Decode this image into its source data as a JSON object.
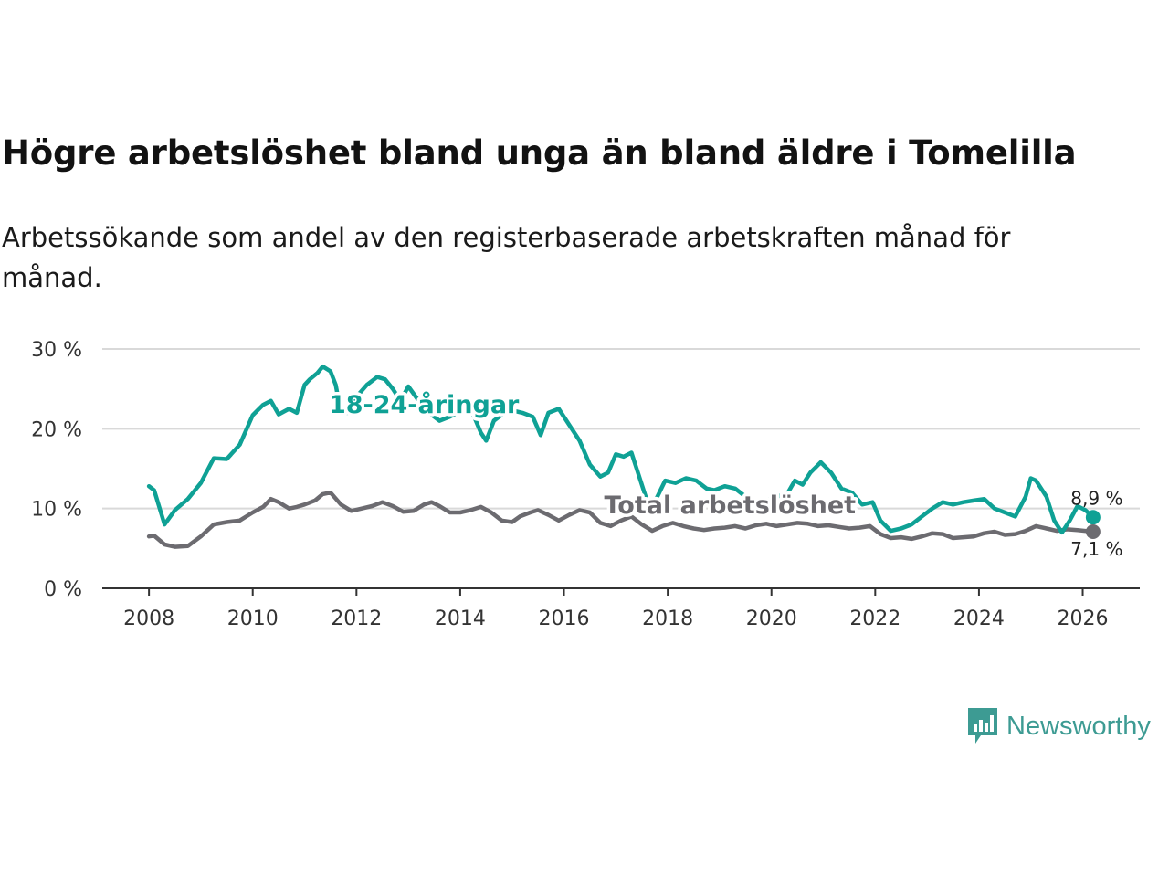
{
  "header": {
    "title": "Högre arbetslöshet bland unga än bland äldre i Tomelilla",
    "subtitle": "Arbetssökande som andel av den registerbaserade arbetskraften månad för månad."
  },
  "brand": {
    "name": "Newsworthy",
    "color": "#3d9b93"
  },
  "chart_data": {
    "type": "line",
    "title": "Högre arbetslöshet bland unga än bland äldre i Tomelilla",
    "xlabel": "",
    "ylabel": "",
    "xlim": [
      2007.1,
      2027.1
    ],
    "ylim": [
      0,
      30
    ],
    "y_ticks": [
      0,
      10,
      20,
      30
    ],
    "y_tick_labels": [
      "0 %",
      "10 %",
      "20 %",
      "30 %"
    ],
    "x_ticks": [
      2008,
      2010,
      2012,
      2014,
      2016,
      2018,
      2020,
      2022,
      2024,
      2026
    ],
    "x_tick_labels": [
      "2008",
      "2010",
      "2012",
      "2014",
      "2016",
      "2018",
      "2020",
      "2022",
      "2024",
      "2026"
    ],
    "grid": true,
    "series": [
      {
        "name": "18-24-åringar",
        "color": "#0fa195",
        "end_label": "8,9 %",
        "points": [
          [
            2008.0,
            12.8
          ],
          [
            2008.1,
            12.3
          ],
          [
            2008.3,
            8.0
          ],
          [
            2008.5,
            9.8
          ],
          [
            2008.75,
            11.2
          ],
          [
            2009.0,
            13.2
          ],
          [
            2009.25,
            16.3
          ],
          [
            2009.5,
            16.2
          ],
          [
            2009.75,
            18.0
          ],
          [
            2010.0,
            21.7
          ],
          [
            2010.2,
            23.0
          ],
          [
            2010.35,
            23.5
          ],
          [
            2010.5,
            21.8
          ],
          [
            2010.7,
            22.5
          ],
          [
            2010.85,
            22.0
          ],
          [
            2011.0,
            25.5
          ],
          [
            2011.1,
            26.2
          ],
          [
            2011.25,
            27.0
          ],
          [
            2011.35,
            27.8
          ],
          [
            2011.5,
            27.2
          ],
          [
            2011.6,
            25.5
          ],
          [
            2011.7,
            22.0
          ],
          [
            2011.85,
            22.0
          ],
          [
            2012.0,
            24.0
          ],
          [
            2012.2,
            25.5
          ],
          [
            2012.4,
            26.5
          ],
          [
            2012.55,
            26.2
          ],
          [
            2012.7,
            25.0
          ],
          [
            2012.85,
            23.5
          ],
          [
            2013.0,
            25.3
          ],
          [
            2013.2,
            23.5
          ],
          [
            2013.4,
            22.0
          ],
          [
            2013.6,
            21.0
          ],
          [
            2013.8,
            21.5
          ],
          [
            2014.0,
            22.2
          ],
          [
            2014.25,
            21.8
          ],
          [
            2014.4,
            19.5
          ],
          [
            2014.5,
            18.5
          ],
          [
            2014.65,
            21.0
          ],
          [
            2014.85,
            22.0
          ],
          [
            2015.0,
            22.3
          ],
          [
            2015.2,
            22.0
          ],
          [
            2015.4,
            21.5
          ],
          [
            2015.55,
            19.2
          ],
          [
            2015.7,
            22.0
          ],
          [
            2015.9,
            22.5
          ],
          [
            2016.1,
            20.5
          ],
          [
            2016.3,
            18.5
          ],
          [
            2016.5,
            15.5
          ],
          [
            2016.7,
            14.0
          ],
          [
            2016.85,
            14.5
          ],
          [
            2017.0,
            16.8
          ],
          [
            2017.15,
            16.5
          ],
          [
            2017.3,
            17.0
          ],
          [
            2017.45,
            14.0
          ],
          [
            2017.65,
            10.0
          ],
          [
            2017.8,
            11.5
          ],
          [
            2017.95,
            13.5
          ],
          [
            2018.15,
            13.2
          ],
          [
            2018.35,
            13.8
          ],
          [
            2018.55,
            13.5
          ],
          [
            2018.75,
            12.5
          ],
          [
            2018.9,
            12.3
          ],
          [
            2019.1,
            12.8
          ],
          [
            2019.3,
            12.5
          ],
          [
            2019.5,
            11.5
          ],
          [
            2019.7,
            10.5
          ],
          [
            2019.9,
            11.0
          ],
          [
            2020.1,
            11.5
          ],
          [
            2020.3,
            11.8
          ],
          [
            2020.45,
            13.5
          ],
          [
            2020.6,
            13.0
          ],
          [
            2020.75,
            14.5
          ],
          [
            2020.95,
            15.8
          ],
          [
            2021.15,
            14.5
          ],
          [
            2021.35,
            12.5
          ],
          [
            2021.55,
            12.0
          ],
          [
            2021.75,
            10.5
          ],
          [
            2021.95,
            10.8
          ],
          [
            2022.1,
            8.5
          ],
          [
            2022.3,
            7.2
          ],
          [
            2022.5,
            7.5
          ],
          [
            2022.7,
            8.0
          ],
          [
            2022.9,
            9.0
          ],
          [
            2023.1,
            10.0
          ],
          [
            2023.3,
            10.8
          ],
          [
            2023.5,
            10.5
          ],
          [
            2023.7,
            10.8
          ],
          [
            2023.9,
            11.0
          ],
          [
            2024.1,
            11.2
          ],
          [
            2024.3,
            10.0
          ],
          [
            2024.5,
            9.5
          ],
          [
            2024.7,
            9.0
          ],
          [
            2024.9,
            11.5
          ],
          [
            2025.0,
            13.8
          ],
          [
            2025.1,
            13.5
          ],
          [
            2025.3,
            11.5
          ],
          [
            2025.45,
            8.5
          ],
          [
            2025.6,
            7.0
          ],
          [
            2025.75,
            8.5
          ],
          [
            2025.9,
            10.3
          ],
          [
            2026.05,
            9.8
          ],
          [
            2026.2,
            8.9
          ]
        ]
      },
      {
        "name": "Total arbetslöshet",
        "color": "#6c6b70",
        "end_label": "7,1 %",
        "points": [
          [
            2008.0,
            6.5
          ],
          [
            2008.1,
            6.6
          ],
          [
            2008.3,
            5.5
          ],
          [
            2008.5,
            5.2
          ],
          [
            2008.75,
            5.3
          ],
          [
            2009.0,
            6.5
          ],
          [
            2009.25,
            8.0
          ],
          [
            2009.5,
            8.3
          ],
          [
            2009.75,
            8.5
          ],
          [
            2010.0,
            9.5
          ],
          [
            2010.2,
            10.2
          ],
          [
            2010.35,
            11.2
          ],
          [
            2010.5,
            10.8
          ],
          [
            2010.7,
            10.0
          ],
          [
            2010.85,
            10.2
          ],
          [
            2011.0,
            10.5
          ],
          [
            2011.2,
            11.0
          ],
          [
            2011.35,
            11.8
          ],
          [
            2011.5,
            12.0
          ],
          [
            2011.7,
            10.5
          ],
          [
            2011.9,
            9.7
          ],
          [
            2012.1,
            10.0
          ],
          [
            2012.3,
            10.3
          ],
          [
            2012.5,
            10.8
          ],
          [
            2012.7,
            10.3
          ],
          [
            2012.9,
            9.6
          ],
          [
            2013.1,
            9.7
          ],
          [
            2013.3,
            10.5
          ],
          [
            2013.45,
            10.8
          ],
          [
            2013.6,
            10.3
          ],
          [
            2013.8,
            9.5
          ],
          [
            2014.0,
            9.5
          ],
          [
            2014.2,
            9.8
          ],
          [
            2014.4,
            10.2
          ],
          [
            2014.6,
            9.5
          ],
          [
            2014.8,
            8.5
          ],
          [
            2015.0,
            8.3
          ],
          [
            2015.15,
            9.0
          ],
          [
            2015.35,
            9.5
          ],
          [
            2015.5,
            9.8
          ],
          [
            2015.7,
            9.2
          ],
          [
            2015.9,
            8.5
          ],
          [
            2016.1,
            9.2
          ],
          [
            2016.3,
            9.8
          ],
          [
            2016.5,
            9.5
          ],
          [
            2016.7,
            8.2
          ],
          [
            2016.9,
            7.8
          ],
          [
            2017.1,
            8.5
          ],
          [
            2017.3,
            9.0
          ],
          [
            2017.5,
            8.0
          ],
          [
            2017.7,
            7.2
          ],
          [
            2017.9,
            7.8
          ],
          [
            2018.1,
            8.2
          ],
          [
            2018.3,
            7.8
          ],
          [
            2018.5,
            7.5
          ],
          [
            2018.7,
            7.3
          ],
          [
            2018.9,
            7.5
          ],
          [
            2019.1,
            7.6
          ],
          [
            2019.3,
            7.8
          ],
          [
            2019.5,
            7.5
          ],
          [
            2019.7,
            7.9
          ],
          [
            2019.9,
            8.1
          ],
          [
            2020.1,
            7.8
          ],
          [
            2020.3,
            8.0
          ],
          [
            2020.5,
            8.2
          ],
          [
            2020.7,
            8.1
          ],
          [
            2020.9,
            7.8
          ],
          [
            2021.1,
            7.9
          ],
          [
            2021.3,
            7.7
          ],
          [
            2021.5,
            7.5
          ],
          [
            2021.7,
            7.6
          ],
          [
            2021.9,
            7.8
          ],
          [
            2022.1,
            6.8
          ],
          [
            2022.3,
            6.3
          ],
          [
            2022.5,
            6.4
          ],
          [
            2022.7,
            6.2
          ],
          [
            2022.9,
            6.5
          ],
          [
            2023.1,
            6.9
          ],
          [
            2023.3,
            6.8
          ],
          [
            2023.5,
            6.3
          ],
          [
            2023.7,
            6.4
          ],
          [
            2023.9,
            6.5
          ],
          [
            2024.1,
            6.9
          ],
          [
            2024.3,
            7.1
          ],
          [
            2024.5,
            6.7
          ],
          [
            2024.7,
            6.8
          ],
          [
            2024.9,
            7.2
          ],
          [
            2025.1,
            7.8
          ],
          [
            2025.3,
            7.5
          ],
          [
            2025.5,
            7.2
          ],
          [
            2025.7,
            7.4
          ],
          [
            2025.9,
            7.3
          ],
          [
            2026.2,
            7.1
          ]
        ]
      }
    ],
    "annotations": [
      {
        "text": "18-24-åringar",
        "series": 0,
        "x": 2013.3,
        "y": 22.0
      },
      {
        "text": "Total arbetslöshet",
        "series": 1,
        "x": 2019.2,
        "y": 9.4
      }
    ]
  }
}
